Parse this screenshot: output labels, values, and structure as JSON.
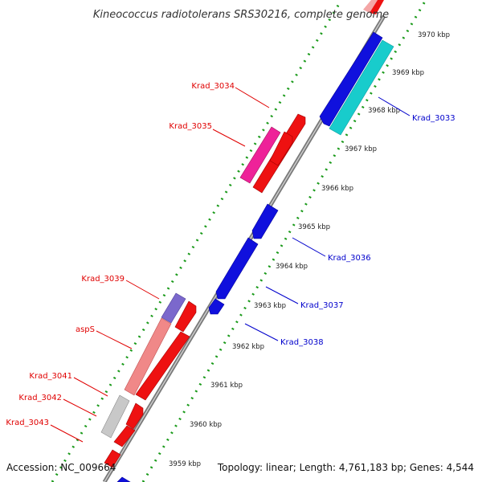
{
  "title": "Kineococcus radiotolerans SRS30216, complete genome",
  "accession": "Accession: NC_009664",
  "summary": "Topology: linear; Length: 4,761,183 bp; Genes: 4,544",
  "colors": {
    "forward_label": "#e00000",
    "reverse_label": "#0000cc",
    "ruler_dots": "#1a9a1a",
    "axis": "#888888"
  },
  "ticks": [
    {
      "label": "3970 kbp"
    },
    {
      "label": "3969 kbp"
    },
    {
      "label": "3968 kbp"
    },
    {
      "label": "3967 kbp"
    },
    {
      "label": "3966 kbp"
    },
    {
      "label": "3965 kbp"
    },
    {
      "label": "3964 kbp"
    },
    {
      "label": "3963 kbp"
    },
    {
      "label": "3962 kbp"
    },
    {
      "label": "3961 kbp"
    },
    {
      "label": "3960 kbp"
    },
    {
      "label": "3959 kbp"
    }
  ],
  "gene_labels": [
    {
      "text": "Krad_3034",
      "strand": "forward"
    },
    {
      "text": "Krad_3035",
      "strand": "forward"
    },
    {
      "text": "Krad_3033",
      "strand": "reverse"
    },
    {
      "text": "Krad_3036",
      "strand": "reverse"
    },
    {
      "text": "Krad_3037",
      "strand": "reverse"
    },
    {
      "text": "Krad_3038",
      "strand": "reverse"
    },
    {
      "text": "Krad_3039",
      "strand": "forward"
    },
    {
      "text": "aspS",
      "strand": "forward"
    },
    {
      "text": "Krad_3041",
      "strand": "forward"
    },
    {
      "text": "Krad_3042",
      "strand": "forward"
    },
    {
      "text": "Krad_3043",
      "strand": "forward"
    }
  ]
}
